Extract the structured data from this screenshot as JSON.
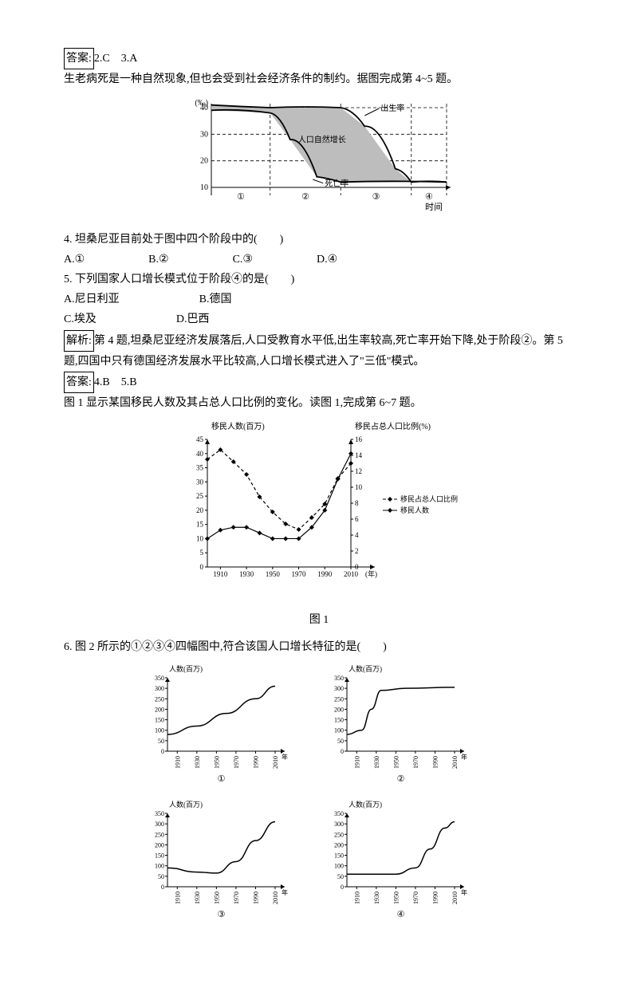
{
  "ans_2_3": {
    "label": "答案:",
    "text": "2.C　3.A"
  },
  "intro_4_5": "生老病死是一种自然现象,但也会受到社会经济条件的制约。据图完成第 4~5 题。",
  "dtm_chart": {
    "type": "line",
    "y_ticks": [
      10,
      20,
      30,
      40
    ],
    "y_unit": "(‰)",
    "x_label": "时间",
    "stages": [
      "①",
      "②",
      "③",
      "④"
    ],
    "labels": {
      "birth": "出生率",
      "growth": "人口自然增长",
      "death": "死亡率"
    },
    "line_color": "#000",
    "fill_color": "#bdbdbd",
    "bg": "#ffffff"
  },
  "q4": {
    "stem": "4. 坦桑尼亚目前处于图中四个阶段中的(　　)",
    "opts": {
      "a": "A.①",
      "b": "B.②",
      "c": "C.③",
      "d": "D.④"
    }
  },
  "q5": {
    "stem": "5. 下列国家人口增长模式位于阶段④的是(　　)",
    "opts": {
      "a": "A.尼日利亚",
      "b": "B.德国",
      "c": "C.埃及",
      "d": "D.巴西"
    }
  },
  "analysis_4_5": {
    "label": "解析:",
    "text": "第 4 题,坦桑尼亚经济发展落后,人口受教育水平低,出生率较高,死亡率开始下降,处于阶段②。第 5 题,四国中只有德国经济发展水平比较高,人口增长模式进入了\"三低\"模式。"
  },
  "ans_4_5": {
    "label": "答案:",
    "text": "4.B　5.B"
  },
  "intro_6_7": "图 1 显示某国移民人数及其占总人口比例的变化。读图 1,完成第 6~7 题。",
  "fig1": {
    "type": "dual-axis-line",
    "title_left": "移民人数(百万)",
    "title_right": "移民占总人口比例(%)",
    "left_ticks": [
      0,
      5,
      10,
      15,
      20,
      25,
      30,
      35,
      40,
      45
    ],
    "right_ticks": [
      0,
      2,
      4,
      6,
      8,
      10,
      12,
      14,
      16
    ],
    "x_ticks": [
      1910,
      1930,
      1950,
      1970,
      1990,
      2010
    ],
    "x_unit": "(年)",
    "legend": {
      "ratio": "移民占总人口比例",
      "count": "移民人数"
    },
    "series_count": {
      "style": "solid",
      "marker": "diamond",
      "color": "#000",
      "x": [
        1900,
        1910,
        1920,
        1930,
        1940,
        1950,
        1960,
        1970,
        1980,
        1990,
        2000,
        2010
      ],
      "y": [
        10,
        13,
        14,
        14,
        12,
        10,
        10,
        10,
        14,
        20,
        31,
        40
      ]
    },
    "series_ratio": {
      "style": "dashed",
      "marker": "diamond",
      "color": "#000",
      "x": [
        1900,
        1910,
        1920,
        1930,
        1940,
        1950,
        1960,
        1970,
        1980,
        1990,
        2000,
        2010
      ],
      "y": [
        13.5,
        14.7,
        13.2,
        11.6,
        8.8,
        6.9,
        5.4,
        4.7,
        6.2,
        7.9,
        11.1,
        13.0
      ]
    },
    "caption": "图 1"
  },
  "q6": {
    "stem": "6. 图 2 所示的①②③④四幅图中,符合该国人口增长特征的是(　　)"
  },
  "fig2": {
    "type": "small-multiple-line",
    "y_label": "人数(百万)",
    "y_ticks": [
      0,
      50,
      100,
      150,
      200,
      250,
      300,
      350
    ],
    "x_ticks": [
      1910,
      1930,
      1950,
      1970,
      1990,
      2010
    ],
    "x_unit": "年",
    "panels": {
      "p1": {
        "label": "①",
        "x": [
          1900,
          1930,
          1960,
          1990,
          2010
        ],
        "y": [
          80,
          120,
          180,
          250,
          310
        ]
      },
      "p2": {
        "label": "②",
        "x": [
          1900,
          1915,
          1925,
          1935,
          1960,
          2010
        ],
        "y": [
          80,
          100,
          200,
          290,
          300,
          305
        ]
      },
      "p3": {
        "label": "③",
        "x": [
          1900,
          1930,
          1950,
          1970,
          1990,
          2010
        ],
        "y": [
          90,
          70,
          65,
          120,
          220,
          310
        ]
      },
      "p4": {
        "label": "④",
        "x": [
          1900,
          1950,
          1970,
          1985,
          2000,
          2010
        ],
        "y": [
          60,
          60,
          90,
          180,
          280,
          310
        ]
      }
    },
    "line_color": "#000"
  }
}
